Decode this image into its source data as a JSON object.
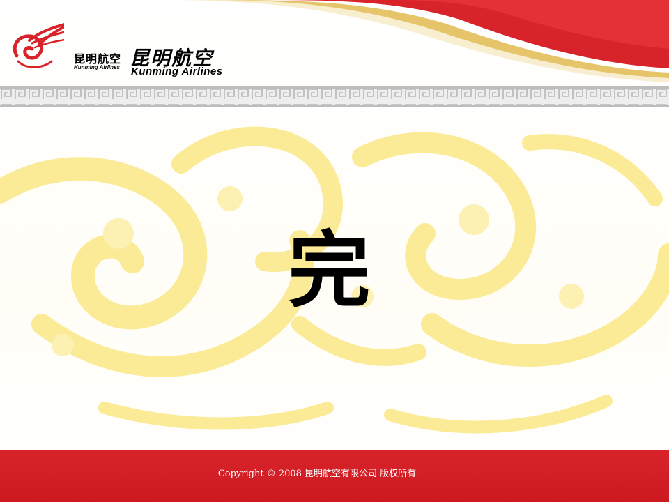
{
  "brand": {
    "name_cn_small": "昆明航空",
    "name_en_small": "Kunming Airlines",
    "name_cn_large": "昆明航空",
    "name_en_large": "Kunming Airlines"
  },
  "slide": {
    "title": "完"
  },
  "footer": {
    "copyright": "Copyright  © 2008 昆明航空有限公司  版权所有"
  },
  "colors": {
    "brand_red": "#d8232a",
    "gold": "#e9c86a",
    "watermark_yellow": "#fbe98c",
    "fret_gray": "#c9c9c9"
  },
  "icons": {
    "emblem": "phoenix-logo-icon",
    "background": "dragon-watermark"
  }
}
